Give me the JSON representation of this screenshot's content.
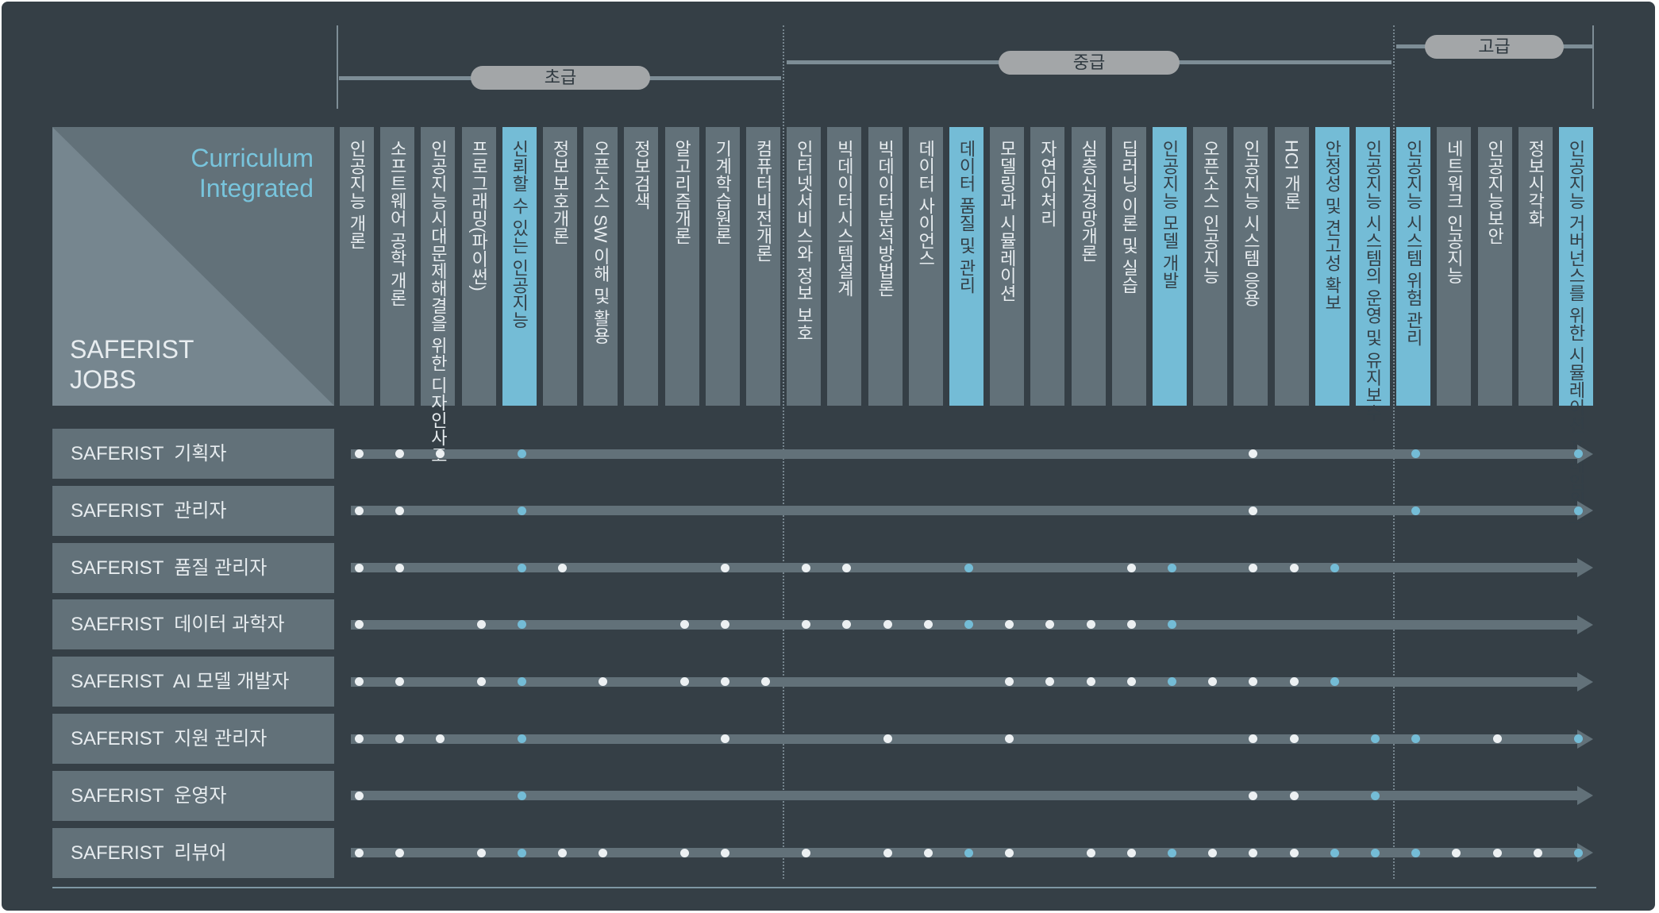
{
  "header": {
    "corner_top_lines": [
      "Curriculum",
      "Integrated"
    ],
    "corner_bottom_lines": [
      "SAFERIST",
      "JOBS"
    ]
  },
  "levels": [
    {
      "label": "초급"
    },
    {
      "label": "중급"
    },
    {
      "label": "고급"
    }
  ],
  "courses": [
    {
      "label": "인공지능 개론",
      "highlight": false
    },
    {
      "label": "소프트웨어 공학 개론",
      "highlight": false
    },
    {
      "label": "인공지능시대문제해결을 위한 디자인사고",
      "highlight": false
    },
    {
      "label": "프로그래밍(파이썬)",
      "highlight": false
    },
    {
      "label": "신뢰할 수 있는 인공지능",
      "highlight": true
    },
    {
      "label": "정보보호개론",
      "highlight": false
    },
    {
      "label": "오픈소스 SW 이해 및 활용",
      "highlight": false
    },
    {
      "label": "정보검색",
      "highlight": false
    },
    {
      "label": "알고리즘개론",
      "highlight": false
    },
    {
      "label": "기계학습원론",
      "highlight": false
    },
    {
      "label": "컴퓨터비전개론",
      "highlight": false
    },
    {
      "label": "인터넷서비스와 정보 보호",
      "highlight": false
    },
    {
      "label": "빅데이터시스템설계",
      "highlight": false
    },
    {
      "label": "빅데이터분석방법론",
      "highlight": false
    },
    {
      "label": "데이터 사이언스",
      "highlight": false
    },
    {
      "label": "데이터 품질 및 관리",
      "highlight": true
    },
    {
      "label": "모델링과 시뮬레이션",
      "highlight": false
    },
    {
      "label": "자연어처리",
      "highlight": false
    },
    {
      "label": "심층신경망개론",
      "highlight": false
    },
    {
      "label": "딥러닝 이론 및 실습",
      "highlight": false
    },
    {
      "label": "인공지능 모델 개발",
      "highlight": true
    },
    {
      "label": "오픈소스 인공지능",
      "highlight": false
    },
    {
      "label": "인공지능 시스템 응용",
      "highlight": false
    },
    {
      "label": "HCI 개론",
      "highlight": false
    },
    {
      "label": "안정성 및 견고성 확보",
      "highlight": true
    },
    {
      "label": "인공지능 시스템의 운영 및 유지보수",
      "highlight": true
    },
    {
      "label": "인공지능 시스템 위험 관리",
      "highlight": true
    },
    {
      "label": "네트워크 인공지능",
      "highlight": false
    },
    {
      "label": "인공지능보안",
      "highlight": false
    },
    {
      "label": "정보시각화",
      "highlight": false
    },
    {
      "label": "인공지능 거버넌스를 위한 시뮬레이션 프레임워크",
      "highlight": true
    }
  ],
  "jobs": [
    {
      "label": "SAFERIST  기획자",
      "courses": [
        0,
        1,
        2,
        4,
        22,
        26,
        30
      ]
    },
    {
      "label": "SAFERIST  관리자",
      "courses": [
        0,
        1,
        4,
        22,
        26,
        30
      ]
    },
    {
      "label": "SAFERIST  품질 관리자",
      "courses": [
        0,
        1,
        4,
        5,
        9,
        11,
        12,
        15,
        19,
        20,
        22,
        23,
        24
      ]
    },
    {
      "label": "SAEFRIST  데이터 과학자",
      "courses": [
        0,
        3,
        4,
        8,
        9,
        11,
        12,
        13,
        14,
        15,
        16,
        17,
        18,
        19,
        20
      ]
    },
    {
      "label": "SAFERIST  AI 모델 개발자",
      "courses": [
        0,
        1,
        3,
        4,
        6,
        8,
        9,
        10,
        16,
        17,
        18,
        19,
        20,
        21,
        22,
        23,
        24
      ]
    },
    {
      "label": "SAFERIST  지원 관리자",
      "courses": [
        0,
        1,
        2,
        4,
        9,
        13,
        16,
        22,
        23,
        25,
        26,
        28,
        30
      ]
    },
    {
      "label": "SAFERIST  운영자",
      "courses": [
        0,
        4,
        22,
        23,
        25
      ]
    },
    {
      "label": "SAFERIST  리뷰어",
      "courses": [
        0,
        1,
        3,
        4,
        5,
        6,
        8,
        9,
        11,
        13,
        14,
        15,
        16,
        18,
        19,
        20,
        21,
        22,
        23,
        24,
        25,
        26,
        27,
        28,
        29,
        30
      ]
    }
  ],
  "colors": {
    "background": "#353f46",
    "panel": "#627179",
    "highlight": "#74bcd6",
    "dot": "#ecf0f2",
    "pill": "#a3a6a8"
  }
}
